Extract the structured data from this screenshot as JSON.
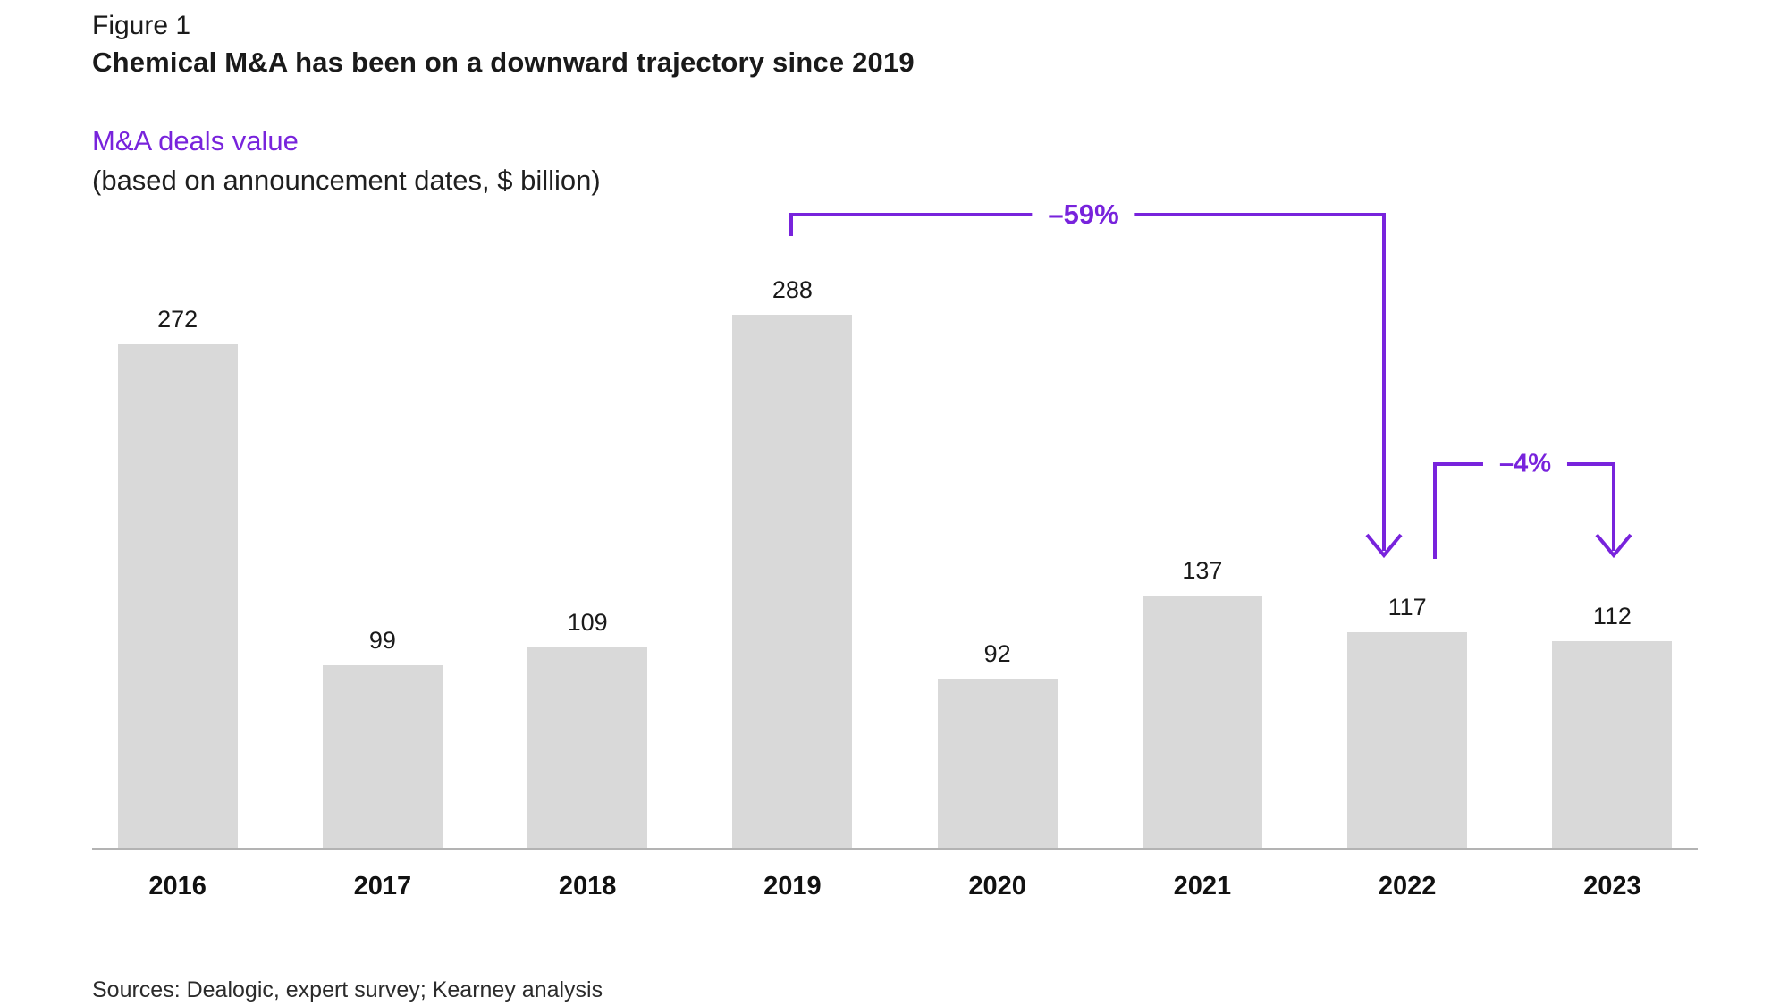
{
  "figure": {
    "label": "Figure 1",
    "title": "Chemical M&A has been on a downward trajectory since 2019",
    "subtitle": "M&A deals value",
    "subtitle_note": "(based on announcement dates, $ billion)",
    "sources": "Sources: Dealogic, expert survey; Kearney analysis"
  },
  "colors": {
    "accent": "#7823dc",
    "bar": "#d9d9d9",
    "baseline": "#b3b3b3",
    "text": "#1a1a1a"
  },
  "chart_data": {
    "type": "bar",
    "categories": [
      "2016",
      "2017",
      "2018",
      "2019",
      "2020",
      "2021",
      "2022",
      "2023"
    ],
    "values": [
      272,
      99,
      109,
      288,
      92,
      137,
      117,
      112
    ],
    "title": "M&A deals value (based on announcement dates, $ billion)",
    "xlabel": "",
    "ylabel": "",
    "ylim": [
      0,
      300
    ],
    "grid": false,
    "legend": "none",
    "value_labels": true,
    "annotations": [
      {
        "label": "–59%",
        "from": "2019",
        "to": "2022"
      },
      {
        "label": "–4%",
        "from": "2022",
        "to": "2023"
      }
    ]
  }
}
